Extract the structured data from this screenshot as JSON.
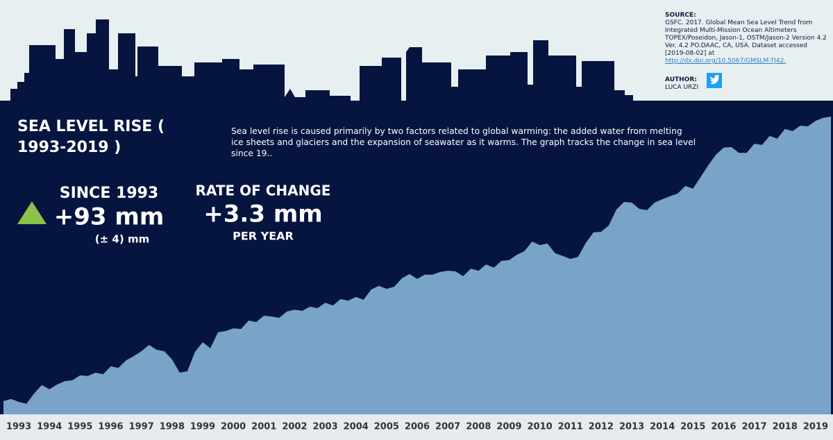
{
  "chart_data": {
    "type": "area",
    "title": "SEA LEVEL RISE ( 1993-2019 )",
    "description": "Sea level rise is caused primarily by two factors related to global warming: the added water from melting ice sheets and glaciers and the expansion of seawater as it warms. The graph tracks the change in sea level since 19..",
    "color": "#7aa3c8",
    "x": [
      1992.5,
      1992.75,
      1993,
      1993.25,
      1993.5,
      1993.75,
      1994,
      1994.25,
      1994.5,
      1994.75,
      1995,
      1995.25,
      1995.5,
      1995.75,
      1996,
      1996.25,
      1996.5,
      1996.75,
      1997,
      1997.25,
      1997.5,
      1997.75,
      1998,
      1998.25,
      1998.5,
      1998.75,
      1999,
      1999.25,
      1999.5,
      1999.75,
      2000,
      2000.25,
      2000.5,
      2000.75,
      2001,
      2001.25,
      2001.5,
      2001.75,
      2002,
      2002.25,
      2002.5,
      2002.75,
      2003,
      2003.25,
      2003.5,
      2003.75,
      2004,
      2004.25,
      2004.5,
      2004.75,
      2005,
      2005.25,
      2005.5,
      2005.75,
      2006,
      2006.25,
      2006.5,
      2006.75,
      2007,
      2007.25,
      2007.5,
      2007.75,
      2008,
      2008.25,
      2008.5,
      2008.75,
      2009,
      2009.25,
      2009.5,
      2009.75,
      2010,
      2010.25,
      2010.5,
      2010.75,
      2011,
      2011.25,
      2011.5,
      2011.75,
      2012,
      2012.25,
      2012.5,
      2012.75,
      2013,
      2013.25,
      2013.5,
      2013.75,
      2014,
      2014.25,
      2014.5,
      2014.75,
      2015,
      2015.25,
      2015.5,
      2015.75,
      2016,
      2016.25,
      2016.5,
      2016.75,
      2017,
      2017.25,
      2017.5,
      2017.75,
      2018,
      2018.25,
      2018.5,
      2018.75,
      2019,
      2019.25,
      2019.5
    ],
    "values": [
      -3.6,
      -2.9,
      -3.9,
      -4.5,
      -1.1,
      1.7,
      0.3,
      1.9,
      3.0,
      3.3,
      4.9,
      4.7,
      5.8,
      5.3,
      7.9,
      7.4,
      9.9,
      11.3,
      12.9,
      15.0,
      13.4,
      12.9,
      10.2,
      5.8,
      6.3,
      12.7,
      15.9,
      13.9,
      19.2,
      19.6,
      20.5,
      20.3,
      23.1,
      22.6,
      24.7,
      24.4,
      24.0,
      26.1,
      26.7,
      26.3,
      27.7,
      27.2,
      29.0,
      28.1,
      30.2,
      29.7,
      30.9,
      30.0,
      33.4,
      34.6,
      33.6,
      34.3,
      37.1,
      38.5,
      36.9,
      38.3,
      38.3,
      39.2,
      39.6,
      39.4,
      37.8,
      40.3,
      39.6,
      41.7,
      40.6,
      42.9,
      43.1,
      44.9,
      46.1,
      49.3,
      48.1,
      48.6,
      45.4,
      44.5,
      43.5,
      44.2,
      48.8,
      52.3,
      52.5,
      54.6,
      59.9,
      62.4,
      62.2,
      60.1,
      59.7,
      62.2,
      63.3,
      64.3,
      65.2,
      67.7,
      66.8,
      70.7,
      74.6,
      78.1,
      80.4,
      80.6,
      78.7,
      78.7,
      81.7,
      81.3,
      84.3,
      83.4,
      86.6,
      85.9,
      87.7,
      87.5,
      89.3,
      90.3,
      90.7
    ],
    "xlim": [
      1992.5,
      2019.5
    ],
    "xticks": [
      1993,
      1994,
      1995,
      1996,
      1997,
      1998,
      1999,
      2000,
      2001,
      2002,
      2003,
      2004,
      2005,
      2006,
      2007,
      2008,
      2009,
      2010,
      2011,
      2012,
      2013,
      2014,
      2015,
      2016,
      2017,
      2018,
      2019
    ],
    "ylim": [
      -8,
      96
    ]
  },
  "stats": {
    "since_label": "SINCE 1993",
    "since_value": "+93 mm",
    "since_error": "(± 4) mm",
    "rate_label": "RATE OF CHANGE",
    "rate_value": "+3.3 mm",
    "rate_unit": "PER YEAR"
  },
  "source": {
    "heading": "SOURCE:",
    "text": "GSFC. 2017. Global Mean Sea Level Trend from Integrated Multi-Mission Ocean Altimeters TOPEX/Poseidon, Jason-1, OSTM/Jason-2 Version 4.2 Ver. 4.2 PO.DAAC, CA, USA. Dataset accessed [2019-08-02] at",
    "link": "http://dx.doi.org/10.5067/GMSLM-TJ42.",
    "author_heading": "AUTHOR:",
    "author": "LUCA URZI"
  }
}
